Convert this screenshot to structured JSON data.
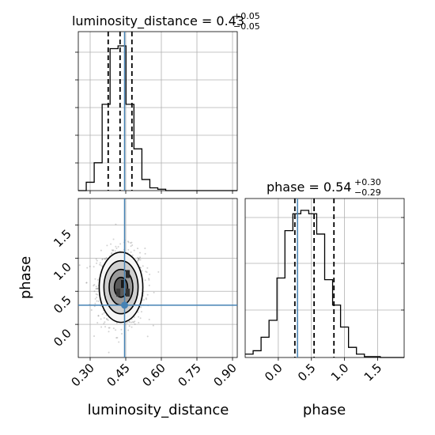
{
  "chart_data": {
    "type": "corner",
    "colors": {
      "truth": "#4682b4",
      "hist": "#000000",
      "grid": "#b0b0b0",
      "points": "#7f7f7f"
    },
    "params": [
      {
        "name": "luminosity_distance",
        "range": [
          0.25,
          0.92
        ],
        "ticks": [
          0.3,
          0.45,
          0.6,
          0.75,
          0.9
        ],
        "tick_labels": [
          "0.30",
          "0.45",
          "0.60",
          "0.75",
          "0.90"
        ],
        "truth": 0.445,
        "quantiles": [
          0.376,
          0.426,
          0.476
        ],
        "title": {
          "prefix": "luminosity_distance = 0.43",
          "sup": "+0.05",
          "sub": "−0.05"
        }
      },
      {
        "name": "phase",
        "range": [
          -0.5,
          1.9
        ],
        "ticks": [
          0.0,
          0.5,
          1.0,
          1.5
        ],
        "tick_labels": [
          "0.0",
          "0.5",
          "1.0",
          "1.5"
        ],
        "truth": 0.29,
        "quantiles": [
          0.25,
          0.54,
          0.84
        ],
        "title": {
          "prefix": "phase = 0.54",
          "sup": "+0.30",
          "sub": "−0.29"
        }
      }
    ],
    "hist_dist": {
      "bins": [
        0.25,
        0.2835,
        0.317,
        0.3505,
        0.384,
        0.4175,
        0.451,
        0.4845,
        0.518,
        0.5515,
        0.585,
        0.6185,
        0.652,
        0.6855,
        0.719,
        0.7525,
        0.786,
        0.8195,
        0.853,
        0.8865,
        0.92
      ],
      "counts": [
        0,
        3,
        10,
        31,
        51,
        52,
        31,
        15,
        4,
        1,
        0.5,
        0,
        0,
        0,
        0,
        0,
        0,
        0,
        0,
        0
      ]
    },
    "hist_phase": {
      "bins": [
        -0.5,
        -0.38,
        -0.26,
        -0.14,
        -0.02,
        0.1,
        0.22,
        0.34,
        0.46,
        0.58,
        0.7,
        0.82,
        0.94,
        1.06,
        1.18,
        1.3,
        1.42,
        1.54,
        1.66,
        1.78,
        1.9
      ],
      "counts": [
        2,
        4,
        12,
        22,
        47,
        75,
        85,
        87,
        85,
        73,
        46,
        31,
        18,
        6,
        2,
        0.5,
        0.5,
        0,
        0,
        0
      ]
    },
    "scatter_center": [
      0.43,
      0.56
    ],
    "scatter_sigma": [
      0.05,
      0.29
    ],
    "contour_levels": [
      {
        "rx": 0.092,
        "ry": 0.53,
        "fill": "#f5f5f5"
      },
      {
        "rx": 0.072,
        "ry": 0.4,
        "fill": "#cfcfcf"
      },
      {
        "rx": 0.05,
        "ry": 0.27,
        "fill": "#9a9a9a"
      },
      {
        "rx": 0.028,
        "ry": 0.15,
        "fill": "#5a5a5a"
      }
    ]
  }
}
